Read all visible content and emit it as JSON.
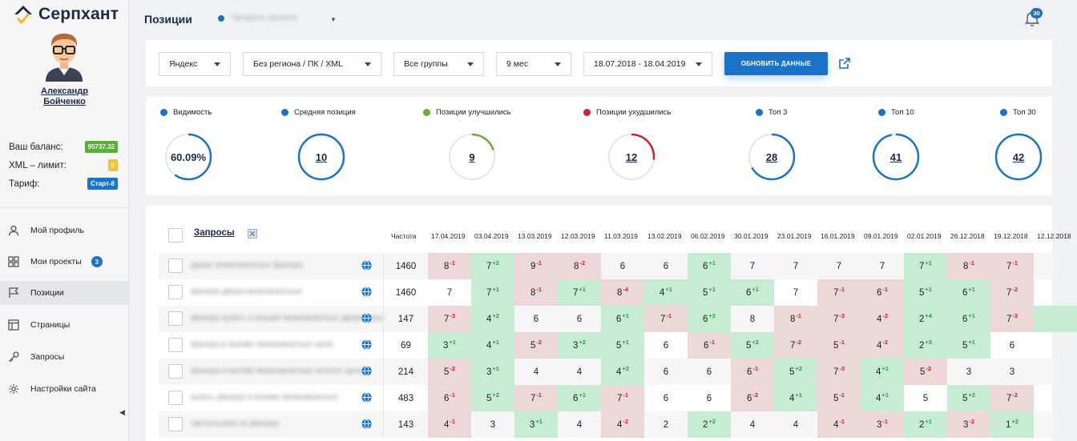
{
  "app": {
    "logo_text": "Серпхант"
  },
  "user": {
    "name_line1": "Александр",
    "name_line2": "Бойченко"
  },
  "balance": [
    {
      "label": "Ваш баланс:",
      "value": "95737.32",
      "color": "green"
    },
    {
      "label": "XML – лимит:",
      "value": "0",
      "color": "yellow"
    },
    {
      "label": "Тариф:",
      "value": "Старт-8",
      "color": "blue"
    }
  ],
  "nav": [
    {
      "label": "Мой профиль",
      "icon": "user-icon"
    },
    {
      "label": "Мои проекты",
      "icon": "grid-icon",
      "count": "3"
    },
    {
      "label": "Позиции",
      "icon": "flag-icon",
      "active": true
    },
    {
      "label": "Страницы",
      "icon": "page-icon"
    },
    {
      "label": "Запросы",
      "icon": "key-icon"
    },
    {
      "label": "Настройки сайта",
      "icon": "gear-icon"
    }
  ],
  "header": {
    "title": "Позиции",
    "project": "Профиль проекта",
    "notifications": "30"
  },
  "filters": {
    "engine": "Яндекс",
    "region": "Без региона / ПК / XML",
    "groups": "Все группы",
    "period": "9 мес",
    "dates": "18.07.2018 - 18.04.2019",
    "refresh": "Обновить данные"
  },
  "stats": [
    {
      "label": "Видимость",
      "value": "60.09%",
      "color": "#1a73c6",
      "fraction": 0.6
    },
    {
      "label": "Средняя позиция",
      "value": "10",
      "color": "#1a73c6",
      "fraction": 1.0
    },
    {
      "label": "Позиции улучшились",
      "value": "9",
      "color": "#63b032",
      "fraction": 0.2
    },
    {
      "label": "Позиции ухудшились",
      "value": "12",
      "color": "#c4262d",
      "fraction": 0.27
    },
    {
      "label": "Топ 3",
      "value": "28",
      "color": "#1a73c6",
      "fraction": 0.67
    },
    {
      "label": "Топ 10",
      "value": "41",
      "color": "#1a73c6",
      "fraction": 0.97
    },
    {
      "label": "Топ 30",
      "value": "42",
      "color": "#1a73c6",
      "fraction": 1.0
    }
  ],
  "table": {
    "title": "Запросы",
    "freq_header": "Частота",
    "dates": [
      "17.04.2019",
      "03.04.2019",
      "13.03.2019",
      "12.03.2019",
      "11.03.2019",
      "13.02.2019",
      "06.02.2019",
      "30.01.2019",
      "23.01.2019",
      "16.01.2019",
      "09.01.2019",
      "02.01.2019",
      "26.12.2018",
      "19.12.2018",
      "12.12.2018"
    ],
    "rows": [
      {
        "query": "двери межкомнатные фанера",
        "freq": "1460",
        "cells": [
          [
            "8",
            "-1",
            "down"
          ],
          [
            "7",
            "+2",
            "up"
          ],
          [
            "9",
            "-1",
            "down"
          ],
          [
            "8",
            "-2",
            "down"
          ],
          [
            "6",
            "",
            ""
          ],
          [
            "6",
            "",
            ""
          ],
          [
            "6",
            "+1",
            "up"
          ],
          [
            "7",
            "",
            ""
          ],
          [
            "7",
            "",
            ""
          ],
          [
            "7",
            "",
            ""
          ],
          [
            "7",
            "",
            ""
          ],
          [
            "7",
            "+1",
            "up"
          ],
          [
            "8",
            "-1",
            "down"
          ],
          [
            "7",
            "-1",
            "down"
          ],
          [
            "",
            "",
            ""
          ]
        ]
      },
      {
        "query": "фанера двери межкомнатные",
        "freq": "1460",
        "cells": [
          [
            "7",
            "",
            ""
          ],
          [
            "7",
            "+1",
            "up"
          ],
          [
            "8",
            "-1",
            "down"
          ],
          [
            "7",
            "+1",
            "up"
          ],
          [
            "8",
            "-4",
            "down"
          ],
          [
            "4",
            "+1",
            "up"
          ],
          [
            "5",
            "+1",
            "up"
          ],
          [
            "6",
            "+1",
            "up"
          ],
          [
            "7",
            "",
            ""
          ],
          [
            "7",
            "-1",
            "down"
          ],
          [
            "6",
            "-1",
            "down"
          ],
          [
            "5",
            "+1",
            "up"
          ],
          [
            "6",
            "+1",
            "up"
          ],
          [
            "7",
            "-2",
            "down"
          ],
          [
            "",
            "",
            ""
          ]
        ]
      },
      {
        "query": "фанера купить в москве межкомнатные двери цена",
        "freq": "147",
        "cells": [
          [
            "7",
            "-3",
            "down"
          ],
          [
            "4",
            "+2",
            "up"
          ],
          [
            "6",
            "",
            ""
          ],
          [
            "6",
            "",
            ""
          ],
          [
            "6",
            "+1",
            "up"
          ],
          [
            "7",
            "-1",
            "down"
          ],
          [
            "6",
            "+2",
            "up"
          ],
          [
            "8",
            "",
            ""
          ],
          [
            "8",
            "-1",
            "down"
          ],
          [
            "7",
            "-3",
            "down"
          ],
          [
            "4",
            "-2",
            "down"
          ],
          [
            "2",
            "+4",
            "up"
          ],
          [
            "6",
            "+1",
            "up"
          ],
          [
            "7",
            "-3",
            "down"
          ],
          [
            "",
            "",
            "up"
          ]
        ]
      },
      {
        "query": "фанера в москве межкомнатные цена",
        "freq": "69",
        "cells": [
          [
            "3",
            "+1",
            "up"
          ],
          [
            "4",
            "+1",
            "up"
          ],
          [
            "5",
            "-2",
            "down"
          ],
          [
            "3",
            "+2",
            "up"
          ],
          [
            "5",
            "+1",
            "up"
          ],
          [
            "6",
            "",
            ""
          ],
          [
            "6",
            "-1",
            "down"
          ],
          [
            "5",
            "+2",
            "up"
          ],
          [
            "7",
            "-2",
            "down"
          ],
          [
            "5",
            "-1",
            "down"
          ],
          [
            "4",
            "-2",
            "down"
          ],
          [
            "2",
            "+3",
            "up"
          ],
          [
            "5",
            "+1",
            "up"
          ],
          [
            "6",
            "",
            ""
          ],
          [
            "",
            "",
            ""
          ]
        ]
      },
      {
        "query": "фанера в москве межкомнатные каталог цены",
        "freq": "214",
        "cells": [
          [
            "5",
            "-2",
            "down"
          ],
          [
            "3",
            "+1",
            "up"
          ],
          [
            "4",
            "",
            ""
          ],
          [
            "4",
            "",
            ""
          ],
          [
            "4",
            "+2",
            "up"
          ],
          [
            "6",
            "",
            ""
          ],
          [
            "6",
            "",
            ""
          ],
          [
            "6",
            "-1",
            "down"
          ],
          [
            "5",
            "+2",
            "up"
          ],
          [
            "7",
            "-3",
            "down"
          ],
          [
            "4",
            "+1",
            "up"
          ],
          [
            "5",
            "-2",
            "down"
          ],
          [
            "3",
            "",
            ""
          ],
          [
            "3",
            "",
            ""
          ],
          [
            "",
            "",
            ""
          ]
        ]
      },
      {
        "query": "купить фанеру в москве межкомнатные",
        "freq": "483",
        "cells": [
          [
            "6",
            "-1",
            "down"
          ],
          [
            "5",
            "+2",
            "up"
          ],
          [
            "7",
            "-1",
            "down"
          ],
          [
            "6",
            "+1",
            "up"
          ],
          [
            "7",
            "-1",
            "down"
          ],
          [
            "6",
            "",
            ""
          ],
          [
            "6",
            "",
            ""
          ],
          [
            "6",
            "-2",
            "down"
          ],
          [
            "4",
            "+1",
            "up"
          ],
          [
            "5",
            "-1",
            "down"
          ],
          [
            "4",
            "+1",
            "up"
          ],
          [
            "5",
            "",
            ""
          ],
          [
            "5",
            "+2",
            "up"
          ],
          [
            "7",
            "-2",
            "down"
          ],
          [
            "",
            "",
            ""
          ]
        ]
      },
      {
        "query": "светильники из фанеры",
        "freq": "143",
        "cells": [
          [
            "4",
            "-1",
            "down"
          ],
          [
            "3",
            "",
            ""
          ],
          [
            "3",
            "+1",
            "up"
          ],
          [
            "4",
            "",
            ""
          ],
          [
            "4",
            "-2",
            "down"
          ],
          [
            "2",
            "",
            ""
          ],
          [
            "2",
            "+2",
            "up"
          ],
          [
            "4",
            "",
            ""
          ],
          [
            "4",
            "",
            ""
          ],
          [
            "4",
            "-1",
            "down"
          ],
          [
            "3",
            "-1",
            "down"
          ],
          [
            "2",
            "+1",
            "up"
          ],
          [
            "3",
            "-2",
            "down"
          ],
          [
            "1",
            "+2",
            "up"
          ],
          [
            "",
            "",
            ""
          ]
        ]
      }
    ]
  }
}
